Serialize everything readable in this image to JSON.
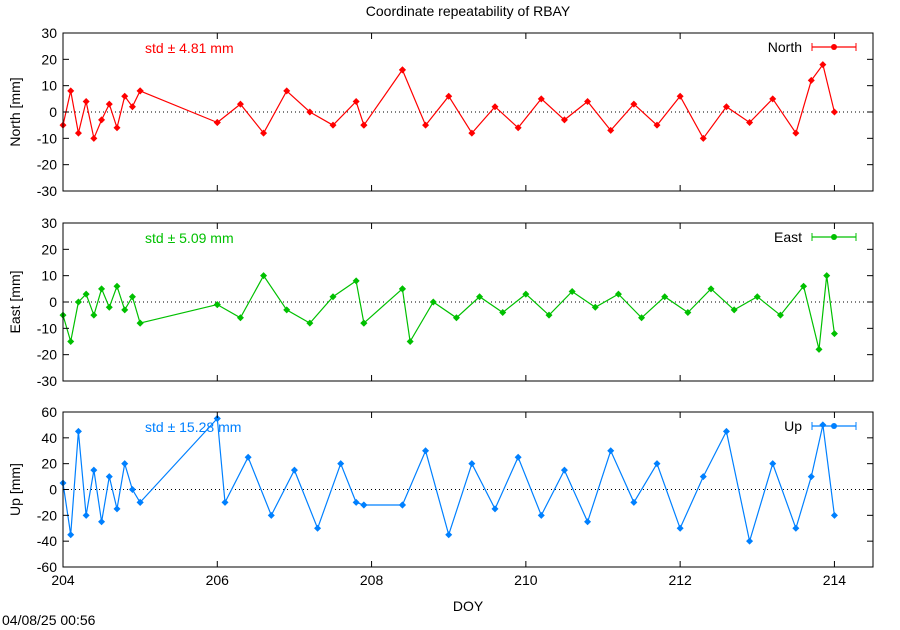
{
  "timestamp": "04/08/25 00:56",
  "chart_data": [
    {
      "type": "line",
      "title": "Coordinate repeatability of RBAY",
      "ylabel": "North [mm]",
      "xlabel": "",
      "xlim": [
        204,
        214.5
      ],
      "ylim": [
        -30,
        30
      ],
      "yticks": [
        -30,
        -20,
        -10,
        0,
        10,
        20,
        30
      ],
      "xticks": [
        204,
        206,
        208,
        210,
        212,
        214
      ],
      "legend": "top-right",
      "annotation": "std ± 4.81 mm",
      "series": [
        {
          "name": "North",
          "color": "#ff0000",
          "segments": [
            {
              "x": [
                204.0,
                204.1,
                204.2,
                204.3,
                204.4,
                204.5,
                204.6,
                204.7,
                204.8,
                204.9,
                205.0
              ],
              "y": [
                -5,
                8,
                -8,
                4,
                -10,
                -3,
                3,
                -6,
                6,
                2,
                8
              ]
            },
            {
              "x": [
                205.0,
                206.0
              ],
              "y": [
                8,
                -4
              ]
            },
            {
              "x": [
                206.0,
                206.3,
                206.6,
                206.9,
                207.2,
                207.5,
                207.8,
                207.9
              ],
              "y": [
                -4,
                3,
                -8,
                8,
                0,
                -5,
                4,
                -5
              ]
            },
            {
              "x": [
                207.9,
                208.4
              ],
              "y": [
                -5,
                16
              ]
            },
            {
              "x": [
                208.4,
                208.7,
                209.0,
                209.3,
                209.6,
                209.9,
                210.2,
                210.5,
                210.8,
                211.1,
                211.4,
                211.7,
                212.0,
                212.3,
                212.6,
                212.9,
                213.2,
                213.5,
                213.7,
                213.85,
                214.0
              ],
              "y": [
                16,
                -5,
                6,
                -8,
                2,
                -6,
                5,
                -3,
                4,
                -7,
                3,
                -5,
                6,
                -10,
                2,
                -4,
                5,
                -8,
                12,
                18,
                0
              ]
            }
          ]
        }
      ]
    },
    {
      "type": "line",
      "title": "",
      "ylabel": "East [mm]",
      "xlabel": "",
      "xlim": [
        204,
        214.5
      ],
      "ylim": [
        -30,
        30
      ],
      "yticks": [
        -30,
        -20,
        -10,
        0,
        10,
        20,
        30
      ],
      "xticks": [
        204,
        206,
        208,
        210,
        212,
        214
      ],
      "legend": "top-right",
      "annotation": "std ± 5.09 mm",
      "series": [
        {
          "name": "East",
          "color": "#00c000",
          "segments": [
            {
              "x": [
                204.0,
                204.1,
                204.2,
                204.3,
                204.4,
                204.5,
                204.6,
                204.7,
                204.8,
                204.9,
                205.0
              ],
              "y": [
                -5,
                -15,
                0,
                3,
                -5,
                5,
                -2,
                6,
                -3,
                2,
                -8
              ]
            },
            {
              "x": [
                205.0,
                206.0
              ],
              "y": [
                -8,
                -1
              ]
            },
            {
              "x": [
                206.0,
                206.3,
                206.6,
                206.9,
                207.2,
                207.5,
                207.8,
                207.9
              ],
              "y": [
                -1,
                -6,
                10,
                -3,
                -8,
                2,
                8,
                -8
              ]
            },
            {
              "x": [
                207.9,
                208.4
              ],
              "y": [
                -8,
                5
              ]
            },
            {
              "x": [
                208.4,
                208.5,
                208.8,
                209.1,
                209.4,
                209.7,
                210.0,
                210.3,
                210.6,
                210.9,
                211.2,
                211.5,
                211.8,
                212.1,
                212.4,
                212.7,
                213.0,
                213.3,
                213.6,
                213.8,
                213.9,
                214.0
              ],
              "y": [
                5,
                -15,
                0,
                -6,
                2,
                -4,
                3,
                -5,
                4,
                -2,
                3,
                -6,
                2,
                -4,
                5,
                -3,
                2,
                -5,
                6,
                -18,
                10,
                -12
              ]
            }
          ]
        }
      ]
    },
    {
      "type": "line",
      "title": "",
      "ylabel": "Up [mm]",
      "xlabel": "DOY",
      "xlim": [
        204,
        214.5
      ],
      "ylim": [
        -60,
        60
      ],
      "yticks": [
        -60,
        -40,
        -20,
        0,
        20,
        40,
        60
      ],
      "xticks": [
        204,
        206,
        208,
        210,
        212,
        214
      ],
      "legend": "top-right",
      "annotation": "std ± 15.28 mm",
      "series": [
        {
          "name": "Up",
          "color": "#0080ff",
          "segments": [
            {
              "x": [
                204.0,
                204.1,
                204.2,
                204.3,
                204.4,
                204.5,
                204.6,
                204.7,
                204.8,
                204.9,
                205.0
              ],
              "y": [
                5,
                -35,
                45,
                -20,
                15,
                -25,
                10,
                -15,
                20,
                0,
                -10
              ]
            },
            {
              "x": [
                205.0,
                206.0
              ],
              "y": [
                -10,
                55
              ]
            },
            {
              "x": [
                206.0,
                206.1,
                206.4,
                206.7,
                207.0,
                207.3,
                207.6,
                207.8,
                207.9
              ],
              "y": [
                55,
                -10,
                25,
                -20,
                15,
                -30,
                20,
                -10,
                -12
              ]
            },
            {
              "x": [
                207.9,
                208.4
              ],
              "y": [
                -12,
                -12
              ]
            },
            {
              "x": [
                208.4,
                208.7,
                209.0,
                209.3,
                209.6,
                209.9,
                210.2,
                210.5,
                210.8,
                211.1,
                211.4,
                211.7,
                212.0,
                212.3,
                212.6,
                212.9,
                213.2,
                213.5,
                213.7,
                213.85,
                214.0
              ],
              "y": [
                -12,
                30,
                -35,
                20,
                -15,
                25,
                -20,
                15,
                -25,
                30,
                -10,
                20,
                -30,
                10,
                45,
                -40,
                20,
                -30,
                10,
                50,
                -20
              ]
            }
          ]
        }
      ]
    }
  ]
}
